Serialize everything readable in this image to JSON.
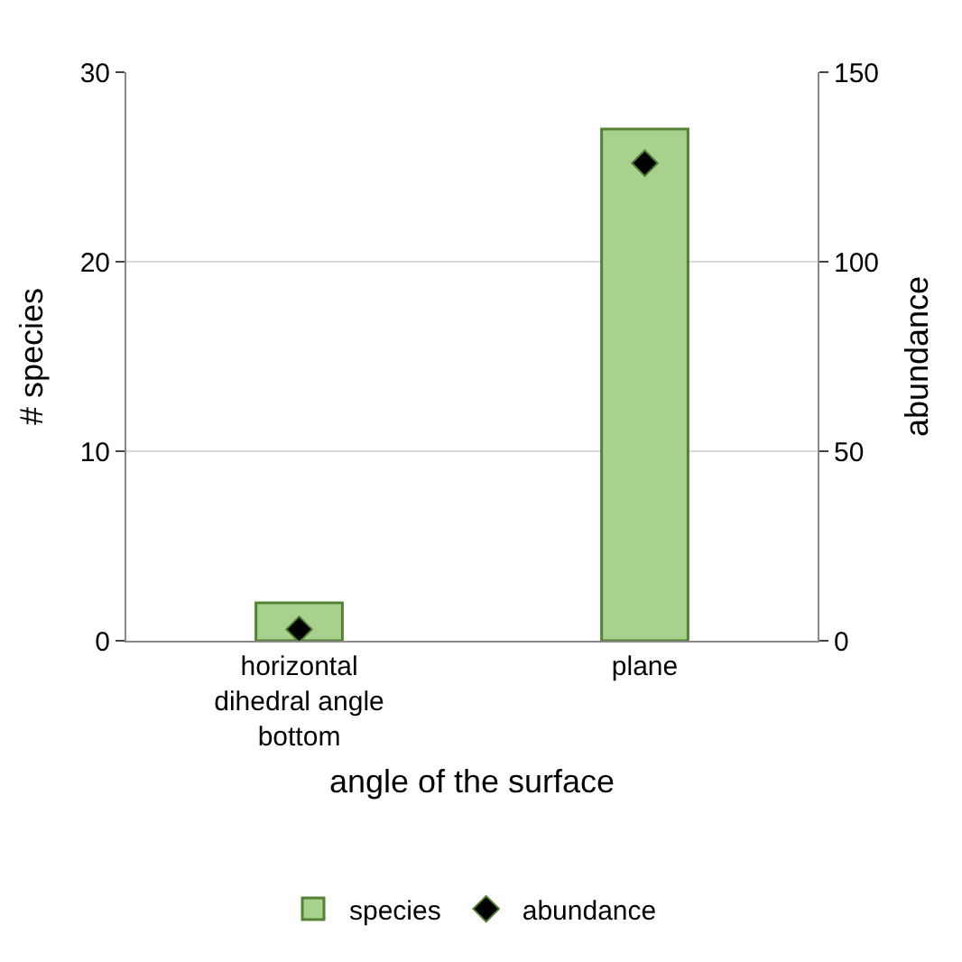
{
  "chart_data": {
    "type": "bar",
    "xlabel": "angle of the surface",
    "ylabel": "# species",
    "y2label": "abundance",
    "categories": [
      "horizontal dihedral angle bottom",
      "plane"
    ],
    "series": [
      {
        "name": "species",
        "color": "#a9d18e",
        "values": [
          2,
          27
        ]
      },
      {
        "name": "abundance",
        "type": "scatter",
        "axis": "y2",
        "color": "#000000",
        "marker": "diamond",
        "values": [
          3,
          126
        ]
      }
    ],
    "ylim": [
      0,
      30
    ],
    "yticks": [
      0,
      10,
      20,
      30
    ],
    "y2lim": [
      0,
      150
    ],
    "y2ticks": [
      0,
      50,
      100,
      150
    ],
    "grid": "y",
    "legend": "bottom"
  }
}
